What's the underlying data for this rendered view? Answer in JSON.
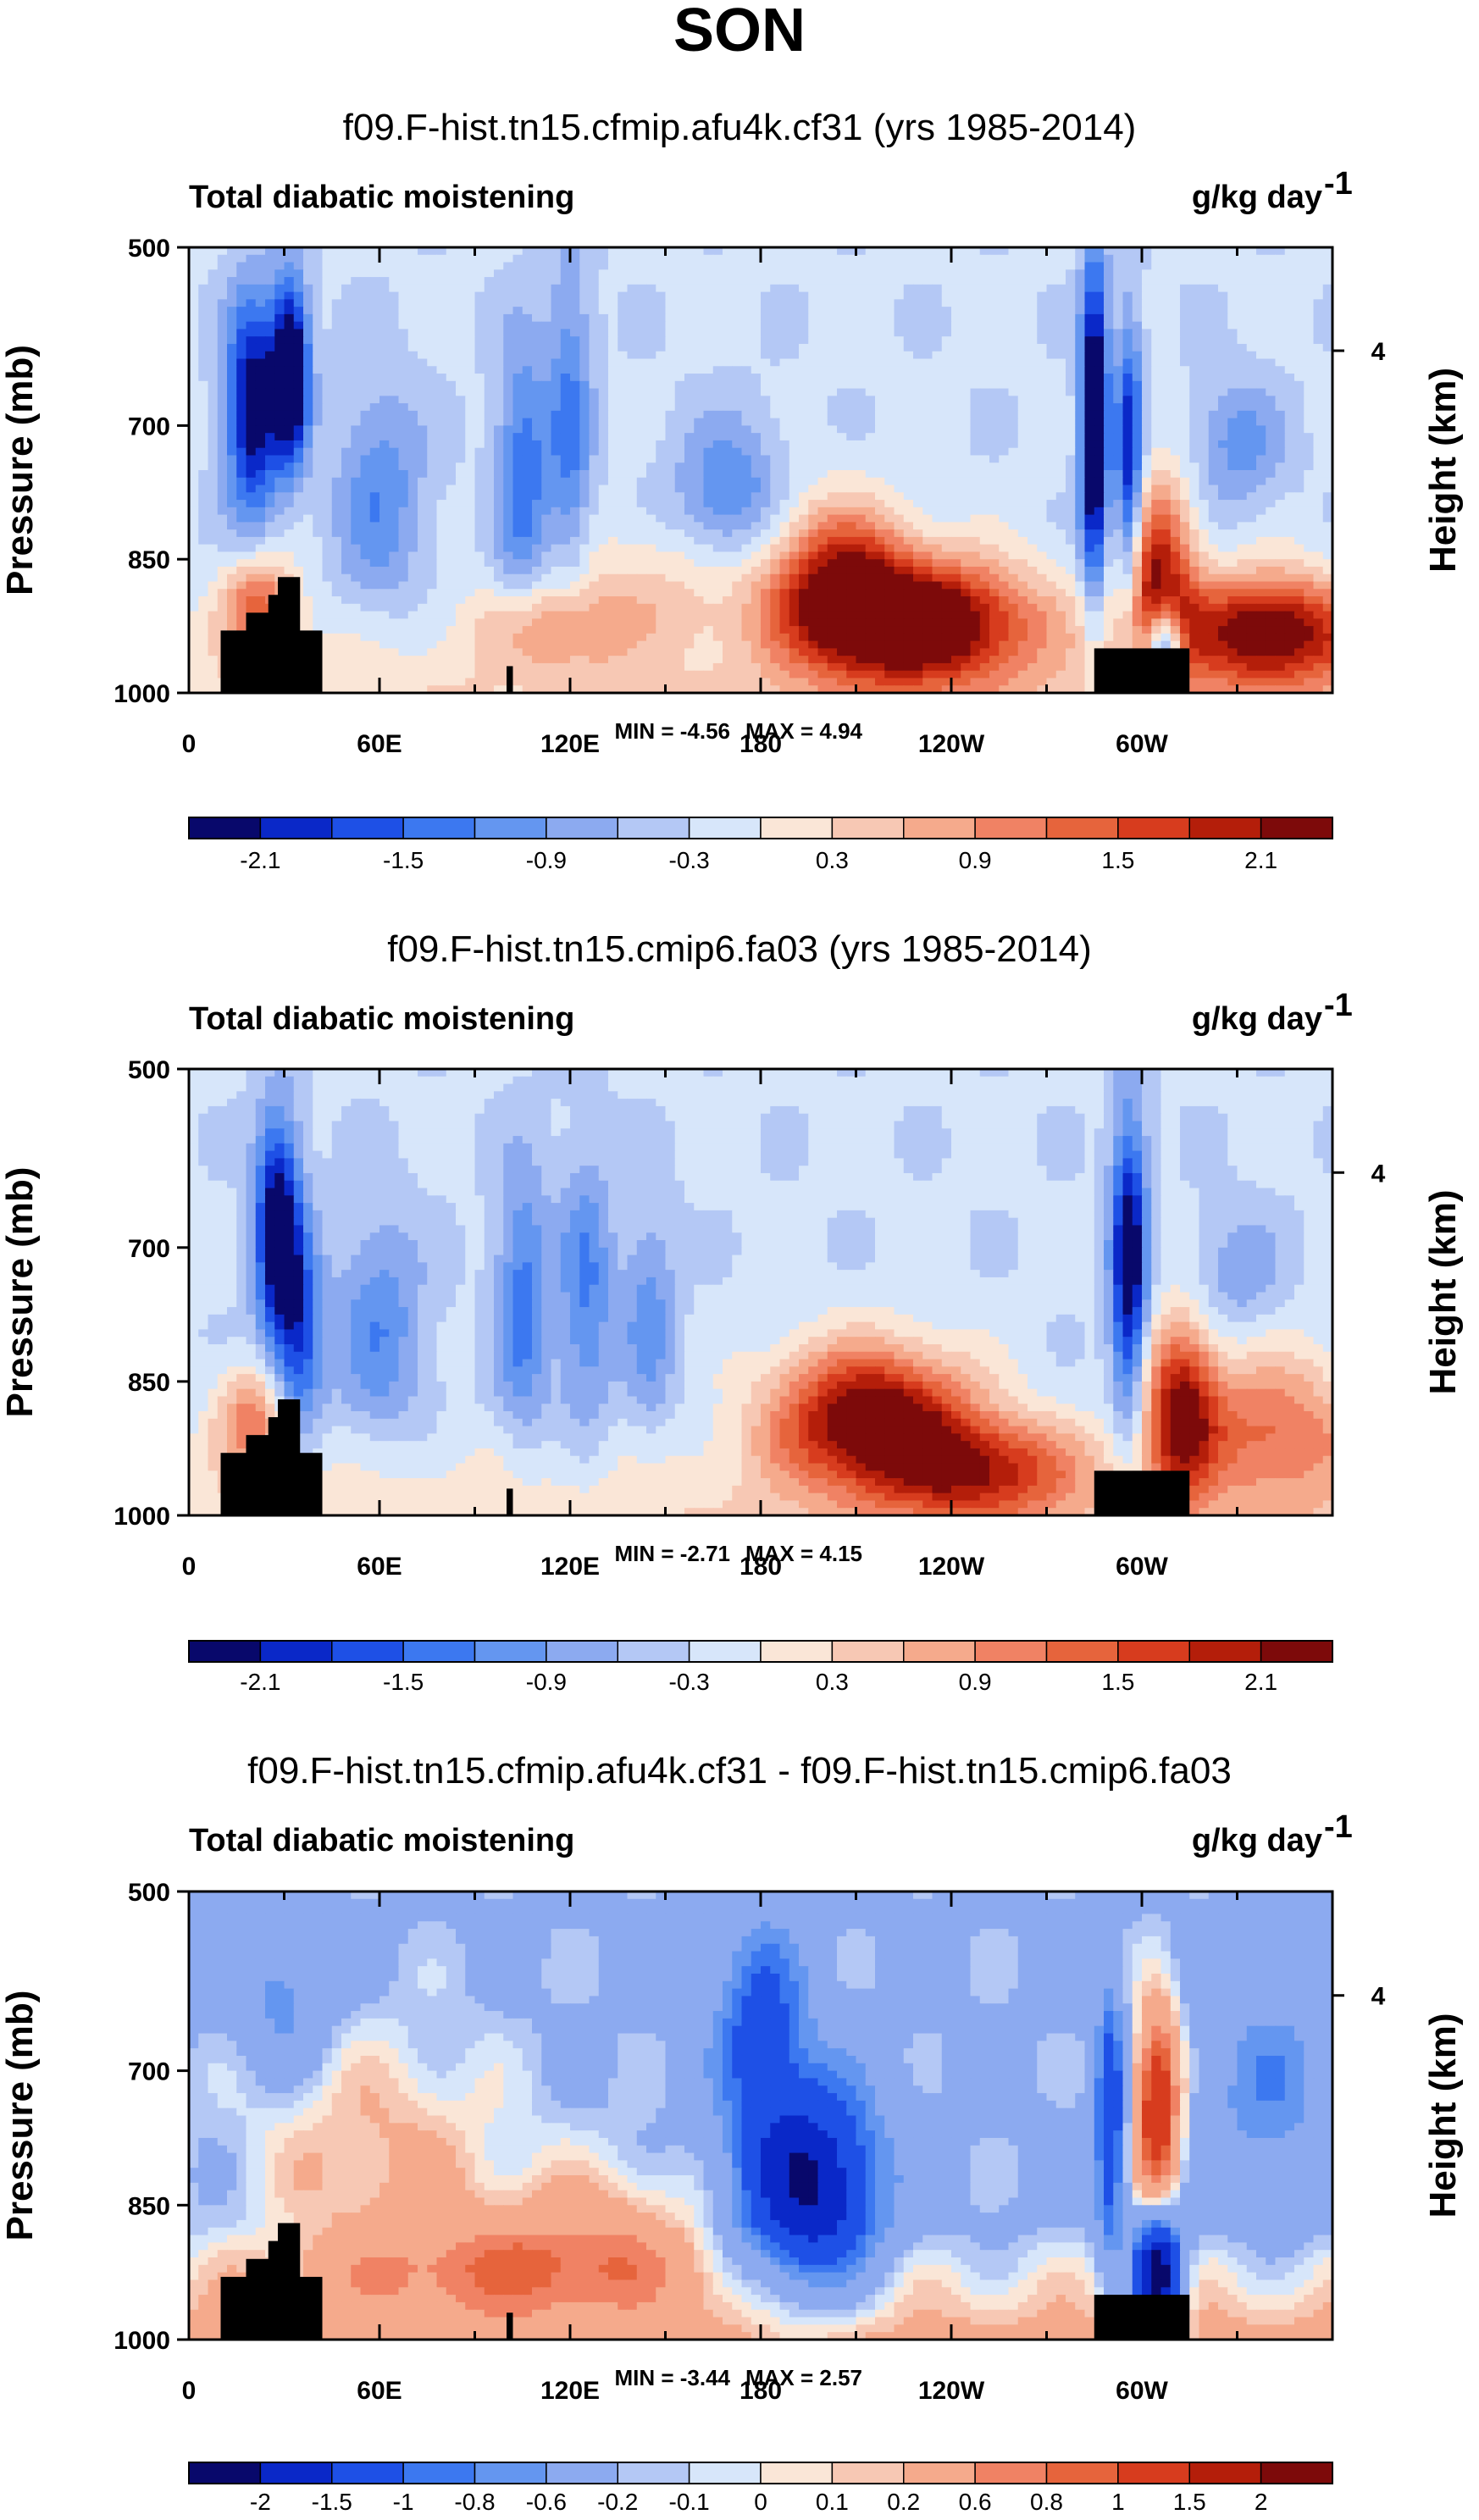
{
  "figure_title": "SON",
  "palette": {
    "neg": [
      "#08086b",
      "#0a28c8",
      "#1e50e6",
      "#3c78f0",
      "#6496f0",
      "#8caaf0",
      "#b4c8f5",
      "#d7e6fa"
    ],
    "pos": [
      "#fae6d7",
      "#f7c8b4",
      "#f5aa8c",
      "#f08264",
      "#e6643c",
      "#d73c1e",
      "#b41e0a",
      "#7d0a0a"
    ],
    "land": "#000000"
  },
  "chart_data": [
    {
      "type": "heatmap",
      "title": "f09.F-hist.tn15.cfmip.afu4k.cf31 (yrs 1985-2014)",
      "left_label": "Total diabatic moistening",
      "right_label": "g/kg day",
      "right_label_exp": "-1",
      "ylabel": "Pressure (mb)",
      "ylabel_right": "Height (km)",
      "yticks": [
        "500",
        "700",
        "850",
        "1000"
      ],
      "ytick_values": [
        500,
        700,
        850,
        1000
      ],
      "ylim": [
        500,
        1000
      ],
      "yticks_right": [
        "4"
      ],
      "ytick_right_pressure": 616,
      "xticks": [
        "0",
        "60E",
        "120E",
        "180",
        "120W",
        "60W"
      ],
      "xtick_values": [
        0,
        60,
        120,
        180,
        240,
        300
      ],
      "xlim": [
        0,
        360
      ],
      "min_label": "MIN = -4.56",
      "max_label": "MAX =  4.94",
      "min": -4.56,
      "max": 4.94,
      "colorbar_labels": [
        "-2.1",
        "-1.5",
        "-0.9",
        "-0.3",
        "0.3",
        "0.9",
        "1.5",
        "2.1"
      ],
      "colorbar_levels": [
        -2.1,
        -1.8,
        -1.5,
        -1.2,
        -0.9,
        -0.6,
        -0.3,
        0,
        0.3,
        0.6,
        0.9,
        1.2,
        1.5,
        1.8,
        2.1
      ],
      "features": [
        {
          "lon": 20,
          "p": 680,
          "slon": 6,
          "sp": 90,
          "amp": -2.2
        },
        {
          "lon": 32,
          "p": 640,
          "slon": 4,
          "sp": 70,
          "amp": -2.8
        },
        {
          "lon": 22,
          "p": 900,
          "slon": 8,
          "sp": 40,
          "amp": 1.6
        },
        {
          "lon": 60,
          "p": 780,
          "slon": 10,
          "sp": 90,
          "amp": -0.9
        },
        {
          "lon": 105,
          "p": 760,
          "slon": 6,
          "sp": 110,
          "amp": -1.2
        },
        {
          "lon": 120,
          "p": 700,
          "slon": 5,
          "sp": 140,
          "amp": -1.0
        },
        {
          "lon": 115,
          "p": 930,
          "slon": 15,
          "sp": 35,
          "amp": 1.0
        },
        {
          "lon": 170,
          "p": 780,
          "slon": 12,
          "sp": 60,
          "amp": -1.0
        },
        {
          "lon": 150,
          "p": 880,
          "slon": 30,
          "sp": 50,
          "amp": 0.6
        },
        {
          "lon": 230,
          "p": 920,
          "slon": 25,
          "sp": 50,
          "amp": 3.0
        },
        {
          "lon": 205,
          "p": 870,
          "slon": 15,
          "sp": 60,
          "amp": 1.8
        },
        {
          "lon": 285,
          "p": 700,
          "slon": 3,
          "sp": 130,
          "amp": -2.8
        },
        {
          "lon": 296,
          "p": 760,
          "slon": 3,
          "sp": 120,
          "amp": -2.0
        },
        {
          "lon": 305,
          "p": 880,
          "slon": 8,
          "sp": 80,
          "amp": 2.4
        },
        {
          "lon": 307,
          "p": 950,
          "slon": 4,
          "sp": 35,
          "amp": -3.0
        },
        {
          "lon": 340,
          "p": 930,
          "slon": 20,
          "sp": 45,
          "amp": 2.6
        },
        {
          "lon": 330,
          "p": 720,
          "slon": 10,
          "sp": 50,
          "amp": -0.8
        }
      ]
    },
    {
      "type": "heatmap",
      "title": "f09.F-hist.tn15.cmip6.fa03 (yrs 1985-2014)",
      "left_label": "Total diabatic moistening",
      "right_label": "g/kg day",
      "right_label_exp": "-1",
      "ylabel": "Pressure (mb)",
      "ylabel_right": "Height (km)",
      "yticks": [
        "500",
        "700",
        "850",
        "1000"
      ],
      "ytick_values": [
        500,
        700,
        850,
        1000
      ],
      "ylim": [
        500,
        1000
      ],
      "yticks_right": [
        "4"
      ],
      "ytick_right_pressure": 616,
      "xticks": [
        "0",
        "60E",
        "120E",
        "180",
        "120W",
        "60W"
      ],
      "xtick_values": [
        0,
        60,
        120,
        180,
        240,
        300
      ],
      "xlim": [
        0,
        360
      ],
      "min_label": "MIN = -2.71",
      "max_label": "MAX =  4.15",
      "min": -2.71,
      "max": 4.15,
      "colorbar_labels": [
        "-2.1",
        "-1.5",
        "-0.9",
        "-0.3",
        "0.3",
        "0.9",
        "1.5",
        "2.1"
      ],
      "colorbar_levels": [
        -2.1,
        -1.8,
        -1.5,
        -1.2,
        -0.9,
        -0.6,
        -0.3,
        0,
        0.3,
        0.6,
        0.9,
        1.2,
        1.5,
        1.8,
        2.1
      ],
      "features": [
        {
          "lon": 28,
          "p": 680,
          "slon": 5,
          "sp": 90,
          "amp": -2.4
        },
        {
          "lon": 35,
          "p": 800,
          "slon": 5,
          "sp": 80,
          "amp": -1.4
        },
        {
          "lon": 20,
          "p": 890,
          "slon": 8,
          "sp": 40,
          "amp": 1.3
        },
        {
          "lon": 60,
          "p": 790,
          "slon": 10,
          "sp": 90,
          "amp": -0.9
        },
        {
          "lon": 105,
          "p": 760,
          "slon": 6,
          "sp": 110,
          "amp": -1.1
        },
        {
          "lon": 125,
          "p": 750,
          "slon": 6,
          "sp": 110,
          "amp": -1.0
        },
        {
          "lon": 145,
          "p": 780,
          "slon": 6,
          "sp": 90,
          "amp": -0.8
        },
        {
          "lon": 215,
          "p": 890,
          "slon": 22,
          "sp": 55,
          "amp": 2.8
        },
        {
          "lon": 250,
          "p": 950,
          "slon": 22,
          "sp": 40,
          "amp": 1.8
        },
        {
          "lon": 296,
          "p": 720,
          "slon": 4,
          "sp": 120,
          "amp": -2.3
        },
        {
          "lon": 312,
          "p": 880,
          "slon": 8,
          "sp": 70,
          "amp": 2.2
        },
        {
          "lon": 340,
          "p": 900,
          "slon": 20,
          "sp": 60,
          "amp": 1.4
        },
        {
          "lon": 330,
          "p": 730,
          "slon": 10,
          "sp": 50,
          "amp": -0.6
        }
      ]
    },
    {
      "type": "heatmap",
      "title": "f09.F-hist.tn15.cfmip.afu4k.cf31 - f09.F-hist.tn15.cmip6.fa03",
      "left_label": "Total diabatic moistening",
      "right_label": "g/kg day",
      "right_label_exp": "-1",
      "ylabel": "Pressure (mb)",
      "ylabel_right": "Height (km)",
      "yticks": [
        "500",
        "700",
        "850",
        "1000"
      ],
      "ytick_values": [
        500,
        700,
        850,
        1000
      ],
      "ylim": [
        500,
        1000
      ],
      "yticks_right": [
        "4"
      ],
      "ytick_right_pressure": 616,
      "xticks": [
        "0",
        "60E",
        "120E",
        "180",
        "120W",
        "60W"
      ],
      "xtick_values": [
        0,
        60,
        120,
        180,
        240,
        300
      ],
      "xlim": [
        0,
        360
      ],
      "min_label": "MIN = -3.44",
      "max_label": "MAX =  2.57",
      "min": -3.44,
      "max": 2.57,
      "colorbar_labels": [
        "-2",
        "-1.5",
        "-1",
        "-0.8",
        "-0.6",
        "-0.2",
        "-0.1",
        "0",
        "0.1",
        "0.2",
        "0.6",
        "0.8",
        "1",
        "1.5",
        "2"
      ],
      "colorbar_levels": [
        -2,
        -1.5,
        -1,
        -0.8,
        -0.6,
        -0.2,
        -0.1,
        0,
        0.1,
        0.2,
        0.6,
        0.8,
        1,
        1.5,
        2
      ],
      "features": [
        {
          "lon": 195,
          "p": 830,
          "slon": 15,
          "sp": 80,
          "amp": -1.8
        },
        {
          "lon": 180,
          "p": 650,
          "slon": 10,
          "sp": 80,
          "amp": -0.9
        },
        {
          "lon": 60,
          "p": 800,
          "slon": 30,
          "sp": 100,
          "amp": 0.5
        },
        {
          "lon": 130,
          "p": 880,
          "slon": 25,
          "sp": 60,
          "amp": 0.5
        },
        {
          "lon": 305,
          "p": 740,
          "slon": 5,
          "sp": 80,
          "amp": 1.7
        },
        {
          "lon": 305,
          "p": 930,
          "slon": 5,
          "sp": 45,
          "amp": -2.5
        },
        {
          "lon": 290,
          "p": 760,
          "slon": 3,
          "sp": 100,
          "amp": -1.2
        },
        {
          "lon": 30,
          "p": 620,
          "slon": 10,
          "sp": 60,
          "amp": -0.5
        },
        {
          "lon": 340,
          "p": 720,
          "slon": 15,
          "sp": 80,
          "amp": -0.5
        },
        {
          "lon": 100,
          "p": 920,
          "slon": 40,
          "sp": 40,
          "amp": 0.6
        }
      ]
    }
  ]
}
